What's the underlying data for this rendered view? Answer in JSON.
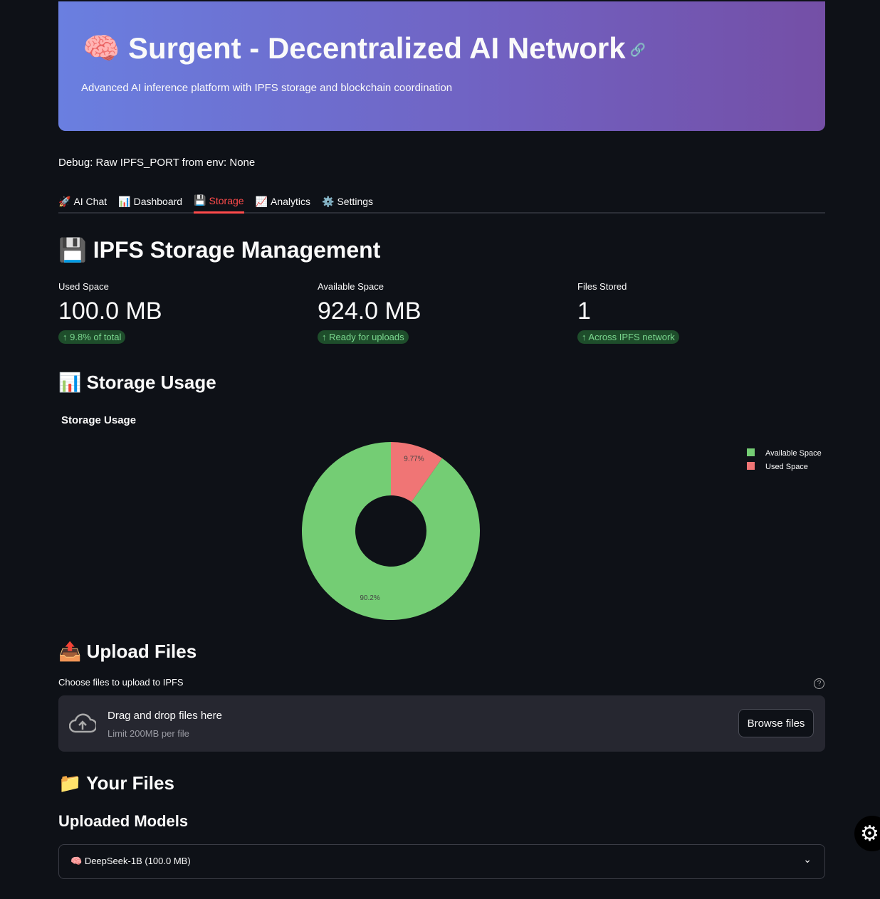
{
  "header": {
    "icon": "🧠",
    "title": "Surgent - Decentralized AI Network",
    "link_icon": "link-icon",
    "subtitle": "Advanced AI inference platform with IPFS storage and blockchain coordination"
  },
  "debug": "Debug: Raw IPFS_PORT from env: None",
  "tabs": [
    {
      "icon": "🚀",
      "label": "AI Chat"
    },
    {
      "icon": "📊",
      "label": "Dashboard"
    },
    {
      "icon": "💾",
      "label": "Storage",
      "active": true
    },
    {
      "icon": "📈",
      "label": "Analytics"
    },
    {
      "icon": "⚙️",
      "label": "Settings"
    }
  ],
  "page_title": {
    "icon": "💾",
    "text": "IPFS Storage Management"
  },
  "metrics": [
    {
      "label": "Used Space",
      "value": "100.0 MB",
      "delta": "9.8% of total"
    },
    {
      "label": "Available Space",
      "value": "924.0 MB",
      "delta": "Ready for uploads"
    },
    {
      "label": "Files Stored",
      "value": "1",
      "delta": "Across IPFS network"
    }
  ],
  "usage_section": {
    "icon": "📊",
    "text": "Storage Usage"
  },
  "chart_data": {
    "type": "pie",
    "hole": true,
    "title": "Storage Usage",
    "labels": [
      "Available Space",
      "Used Space"
    ],
    "values": [
      924,
      100
    ],
    "percent_labels": [
      "90.2%",
      "9.77%"
    ],
    "colors": [
      "#74cd74",
      "#f07575"
    ],
    "legend": "top-right"
  },
  "upload": {
    "icon": "📤",
    "title": "Upload Files",
    "label": "Choose files to upload to IPFS",
    "drop_text": "Drag and drop files here",
    "limit": "Limit 200MB per file",
    "browse": "Browse files"
  },
  "files": {
    "icon": "📁",
    "title": "Your Files",
    "subtitle": "Uploaded Models",
    "items": [
      {
        "icon": "🧠",
        "label": "DeepSeek-1B (100.0 MB)"
      }
    ]
  },
  "colors": {
    "accent": "#ff4b4b",
    "background": "#0e1117"
  }
}
